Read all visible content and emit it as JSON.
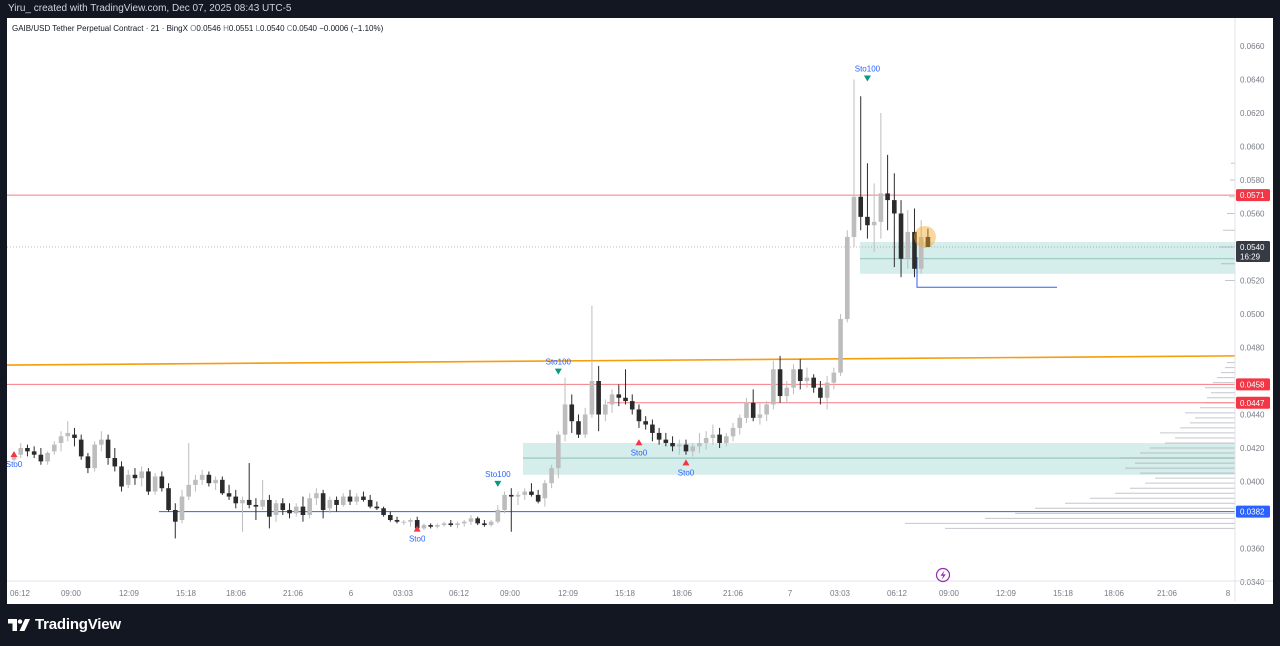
{
  "header": {
    "title": "Yiru_ created with TradingView.com, Dec 07, 2025 08:43 UTC-5"
  },
  "legend": {
    "symbol": "GAIB/USD Tether Perpetual Contract · 21 · BingX",
    "open_label": "O",
    "open": "0.0546",
    "high_label": "H",
    "high": "0.0551",
    "low_label": "L",
    "low": "0.0540",
    "close_label": "C",
    "close": "0.0540",
    "change": "−0.0006 (−1.10%)"
  },
  "branding": {
    "name": "TradingView"
  },
  "colors": {
    "up": "#bdbdbd",
    "down": "#2b2b2b",
    "orange_line": "#f59d0c",
    "red_line": "#f77c80",
    "blue_line": "#2962ff",
    "zone_fill": "#b2dfdb",
    "tag_red": "#f23645",
    "tag_blue": "#2962ff",
    "tag_dark": "#363a45",
    "signal_up": "#f23645",
    "signal_down": "#089981"
  },
  "chart_data": {
    "type": "candlestick",
    "title": "GAIB/USD Tether Perpetual Contract",
    "y_range": [
      0.0334,
      0.067
    ],
    "y_ticks": [
      "0.0660",
      "0.0640",
      "0.0620",
      "0.0600",
      "0.0580",
      "0.0560",
      "0.0520",
      "0.0500",
      "0.0480",
      "0.0440",
      "0.0420",
      "0.0400",
      "0.0360",
      "0.0340"
    ],
    "x_ticks": [
      "06:12",
      "09:00",
      "12:09",
      "15:18",
      "18:06",
      "21:06",
      "6",
      "03:03",
      "06:12",
      "09:00",
      "12:09",
      "15:18",
      "18:06",
      "21:06",
      "7",
      "03:03",
      "06:12",
      "09:00",
      "12:09",
      "15:18",
      "18:06",
      "21:06",
      "8"
    ],
    "price_tags": [
      {
        "label": "0.0571",
        "value": 0.0571,
        "kind": "red"
      },
      {
        "label": "0.0540",
        "sub": "16:29",
        "value": 0.054,
        "kind": "dark"
      },
      {
        "label": "0.0458",
        "value": 0.0458,
        "kind": "red"
      },
      {
        "label": "0.0447",
        "value": 0.0447,
        "kind": "red"
      },
      {
        "label": "0.0382",
        "value": 0.0382,
        "kind": "blue"
      }
    ],
    "levels": {
      "resistance_top": 0.0571,
      "red_mid": 0.0458,
      "red_low": 0.0447,
      "support_blue": 0.0382,
      "current": 0.054,
      "orange_trend_start": 0.04695,
      "orange_trend_end": 0.0475,
      "blue_short": 0.0516
    },
    "zones": [
      {
        "top": 0.0543,
        "bottom": 0.0524,
        "mid": 0.0533
      },
      {
        "top": 0.0423,
        "bottom": 0.0404,
        "mid": 0.0414
      }
    ],
    "signals": [
      {
        "label": "Sto0",
        "index": 0,
        "dir": "up",
        "price": 0.0417
      },
      {
        "label": "Sto0",
        "index": 60,
        "dir": "up",
        "price": 0.03725
      },
      {
        "label": "Sto100",
        "index": 72,
        "dir": "down",
        "price": 0.0398
      },
      {
        "label": "Sto100",
        "index": 81,
        "dir": "down",
        "price": 0.0465
      },
      {
        "label": "Sto0",
        "index": 93,
        "dir": "up",
        "price": 0.0424
      },
      {
        "label": "Sto0",
        "index": 100,
        "dir": "up",
        "price": 0.0412
      },
      {
        "label": "Sto100",
        "index": 127,
        "dir": "down",
        "price": 0.064
      }
    ],
    "candles": [
      [
        0.0413,
        0.0417,
        0.041,
        0.0416
      ],
      [
        0.0416,
        0.0423,
        0.0414,
        0.042
      ],
      [
        0.042,
        0.0422,
        0.0415,
        0.0418
      ],
      [
        0.0418,
        0.0421,
        0.0414,
        0.0416
      ],
      [
        0.0416,
        0.042,
        0.041,
        0.0412
      ],
      [
        0.0412,
        0.0418,
        0.041,
        0.0417
      ],
      [
        0.0418,
        0.0424,
        0.0416,
        0.0422
      ],
      [
        0.0423,
        0.043,
        0.0418,
        0.0427
      ],
      [
        0.0427,
        0.0436,
        0.0424,
        0.0429
      ],
      [
        0.0428,
        0.0432,
        0.0421,
        0.0426
      ],
      [
        0.0425,
        0.0428,
        0.0413,
        0.0415
      ],
      [
        0.0415,
        0.0417,
        0.0405,
        0.0408
      ],
      [
        0.0408,
        0.0424,
        0.0406,
        0.0422
      ],
      [
        0.0422,
        0.043,
        0.0418,
        0.0425
      ],
      [
        0.0425,
        0.0428,
        0.041,
        0.0414
      ],
      [
        0.0414,
        0.042,
        0.0406,
        0.0409
      ],
      [
        0.0409,
        0.0412,
        0.0394,
        0.0397
      ],
      [
        0.0398,
        0.0407,
        0.0396,
        0.0404
      ],
      [
        0.0404,
        0.0408,
        0.0398,
        0.0402
      ],
      [
        0.0402,
        0.0409,
        0.0397,
        0.0406
      ],
      [
        0.0406,
        0.0408,
        0.0392,
        0.0394
      ],
      [
        0.0394,
        0.0405,
        0.0392,
        0.0403
      ],
      [
        0.0403,
        0.0406,
        0.0394,
        0.0396
      ],
      [
        0.0396,
        0.0399,
        0.0382,
        0.0383
      ],
      [
        0.0383,
        0.0387,
        0.0366,
        0.0376
      ],
      [
        0.0377,
        0.0395,
        0.0375,
        0.0391
      ],
      [
        0.0391,
        0.0423,
        0.0389,
        0.0398
      ],
      [
        0.0398,
        0.0404,
        0.0394,
        0.0401
      ],
      [
        0.0401,
        0.0407,
        0.0398,
        0.0404
      ],
      [
        0.0404,
        0.0406,
        0.0397,
        0.0399
      ],
      [
        0.0399,
        0.0403,
        0.0395,
        0.0401
      ],
      [
        0.0401,
        0.0403,
        0.0392,
        0.0393
      ],
      [
        0.0393,
        0.0398,
        0.0389,
        0.0391
      ],
      [
        0.0391,
        0.0395,
        0.0384,
        0.0387
      ],
      [
        0.0387,
        0.0391,
        0.037,
        0.0389
      ],
      [
        0.0389,
        0.0411,
        0.0384,
        0.0386
      ],
      [
        0.0386,
        0.039,
        0.0377,
        0.0385
      ],
      [
        0.0385,
        0.0401,
        0.0383,
        0.0389
      ],
      [
        0.0389,
        0.0392,
        0.0372,
        0.0379
      ],
      [
        0.038,
        0.0389,
        0.0376,
        0.0387
      ],
      [
        0.0387,
        0.039,
        0.038,
        0.0383
      ],
      [
        0.0383,
        0.0387,
        0.0378,
        0.0381
      ],
      [
        0.0381,
        0.0387,
        0.0379,
        0.0385
      ],
      [
        0.0385,
        0.0391,
        0.0376,
        0.038
      ],
      [
        0.038,
        0.0393,
        0.0378,
        0.039
      ],
      [
        0.039,
        0.0396,
        0.0386,
        0.0393
      ],
      [
        0.0393,
        0.0395,
        0.0378,
        0.0383
      ],
      [
        0.0384,
        0.0391,
        0.0381,
        0.0389
      ],
      [
        0.0389,
        0.0391,
        0.0382,
        0.0386
      ],
      [
        0.0386,
        0.0393,
        0.0385,
        0.0391
      ],
      [
        0.0391,
        0.0395,
        0.0386,
        0.0388
      ],
      [
        0.0388,
        0.0393,
        0.0386,
        0.0391
      ],
      [
        0.0391,
        0.0394,
        0.0388,
        0.0389
      ],
      [
        0.0389,
        0.0392,
        0.0384,
        0.0385
      ],
      [
        0.0385,
        0.0388,
        0.0383,
        0.0384
      ],
      [
        0.0384,
        0.0385,
        0.0379,
        0.038
      ],
      [
        0.038,
        0.0382,
        0.0376,
        0.0377
      ],
      [
        0.0377,
        0.0379,
        0.0375,
        0.0376
      ],
      [
        0.0376,
        0.0377,
        0.0374,
        0.0376
      ],
      [
        0.0376,
        0.0378,
        0.0373,
        0.0377
      ],
      [
        0.0377,
        0.0379,
        0.0371,
        0.0372
      ],
      [
        0.0372,
        0.0375,
        0.0371,
        0.0374
      ],
      [
        0.0374,
        0.0375,
        0.0372,
        0.0373
      ],
      [
        0.0373,
        0.0375,
        0.0372,
        0.0374
      ],
      [
        0.0374,
        0.0376,
        0.0373,
        0.0375
      ],
      [
        0.0375,
        0.0377,
        0.0373,
        0.0374
      ],
      [
        0.0374,
        0.0376,
        0.0372,
        0.0375
      ],
      [
        0.0375,
        0.0377,
        0.0373,
        0.0376
      ],
      [
        0.0376,
        0.038,
        0.0374,
        0.0378
      ],
      [
        0.0378,
        0.0379,
        0.0374,
        0.0375
      ],
      [
        0.0375,
        0.0377,
        0.0373,
        0.0374
      ],
      [
        0.0374,
        0.0377,
        0.0373,
        0.0376
      ],
      [
        0.0376,
        0.0386,
        0.0375,
        0.0383
      ],
      [
        0.0383,
        0.0394,
        0.0381,
        0.0392
      ],
      [
        0.0392,
        0.0396,
        0.037,
        0.0391
      ],
      [
        0.0391,
        0.0394,
        0.0386,
        0.0392
      ],
      [
        0.0392,
        0.0396,
        0.0389,
        0.0394
      ],
      [
        0.0394,
        0.0399,
        0.0391,
        0.0392
      ],
      [
        0.0392,
        0.0395,
        0.0387,
        0.0388
      ],
      [
        0.039,
        0.0401,
        0.0385,
        0.0399
      ],
      [
        0.0399,
        0.041,
        0.0396,
        0.0408
      ],
      [
        0.0408,
        0.043,
        0.0402,
        0.0428
      ],
      [
        0.0428,
        0.0462,
        0.0424,
        0.0446
      ],
      [
        0.0446,
        0.0452,
        0.0429,
        0.0436
      ],
      [
        0.0436,
        0.044,
        0.0426,
        0.0428
      ],
      [
        0.0428,
        0.0444,
        0.0426,
        0.044
      ],
      [
        0.044,
        0.0505,
        0.0438,
        0.046
      ],
      [
        0.046,
        0.0469,
        0.043,
        0.044
      ],
      [
        0.044,
        0.0449,
        0.0436,
        0.0446
      ],
      [
        0.0446,
        0.0455,
        0.0441,
        0.0452
      ],
      [
        0.0452,
        0.0458,
        0.0445,
        0.045
      ],
      [
        0.045,
        0.0467,
        0.0446,
        0.0448
      ],
      [
        0.0448,
        0.0452,
        0.044,
        0.0443
      ],
      [
        0.0443,
        0.0446,
        0.0432,
        0.0436
      ],
      [
        0.0436,
        0.0439,
        0.0431,
        0.0434
      ],
      [
        0.0434,
        0.0437,
        0.0424,
        0.0429
      ],
      [
        0.0429,
        0.0432,
        0.0422,
        0.0425
      ],
      [
        0.0425,
        0.0429,
        0.0421,
        0.0423
      ],
      [
        0.0423,
        0.0427,
        0.0418,
        0.0421
      ],
      [
        0.0421,
        0.0425,
        0.0416,
        0.0422
      ],
      [
        0.0422,
        0.0425,
        0.0416,
        0.0418
      ],
      [
        0.0418,
        0.0423,
        0.0415,
        0.0421
      ],
      [
        0.0421,
        0.0429,
        0.0417,
        0.0423
      ],
      [
        0.0423,
        0.043,
        0.0419,
        0.0426
      ],
      [
        0.0426,
        0.0434,
        0.0422,
        0.0428
      ],
      [
        0.0428,
        0.0432,
        0.042,
        0.0423
      ],
      [
        0.0423,
        0.0429,
        0.0421,
        0.0427
      ],
      [
        0.0427,
        0.0435,
        0.0424,
        0.0432
      ],
      [
        0.0432,
        0.044,
        0.0428,
        0.0438
      ],
      [
        0.0438,
        0.045,
        0.0435,
        0.0447
      ],
      [
        0.0447,
        0.0455,
        0.0436,
        0.0438
      ],
      [
        0.0438,
        0.0447,
        0.0434,
        0.044
      ],
      [
        0.044,
        0.0448,
        0.0436,
        0.0446
      ],
      [
        0.0446,
        0.0472,
        0.0443,
        0.0467
      ],
      [
        0.0467,
        0.0475,
        0.0447,
        0.0451
      ],
      [
        0.0451,
        0.046,
        0.0447,
        0.0456
      ],
      [
        0.0456,
        0.047,
        0.0452,
        0.0467
      ],
      [
        0.0467,
        0.0473,
        0.0455,
        0.046
      ],
      [
        0.046,
        0.0468,
        0.0456,
        0.0462
      ],
      [
        0.0462,
        0.0464,
        0.0453,
        0.0456
      ],
      [
        0.0456,
        0.046,
        0.0446,
        0.045
      ],
      [
        0.045,
        0.0463,
        0.0443,
        0.0459
      ],
      [
        0.0459,
        0.0468,
        0.0455,
        0.0465
      ],
      [
        0.0465,
        0.05,
        0.0463,
        0.0497
      ],
      [
        0.0497,
        0.055,
        0.0495,
        0.0546
      ],
      [
        0.0546,
        0.064,
        0.054,
        0.057
      ],
      [
        0.057,
        0.063,
        0.055,
        0.0558
      ],
      [
        0.0558,
        0.059,
        0.0545,
        0.0553
      ],
      [
        0.0553,
        0.0578,
        0.0537,
        0.0555
      ],
      [
        0.0555,
        0.062,
        0.0545,
        0.0572
      ],
      [
        0.0572,
        0.0595,
        0.055,
        0.0568
      ],
      [
        0.0568,
        0.0584,
        0.0528,
        0.056
      ],
      [
        0.056,
        0.0568,
        0.0522,
        0.0533
      ],
      [
        0.0533,
        0.0562,
        0.0527,
        0.0549
      ],
      [
        0.0549,
        0.0563,
        0.0522,
        0.0527
      ],
      [
        0.0527,
        0.0556,
        0.0524,
        0.0546
      ],
      [
        0.0546,
        0.0551,
        0.054,
        0.054
      ]
    ]
  }
}
